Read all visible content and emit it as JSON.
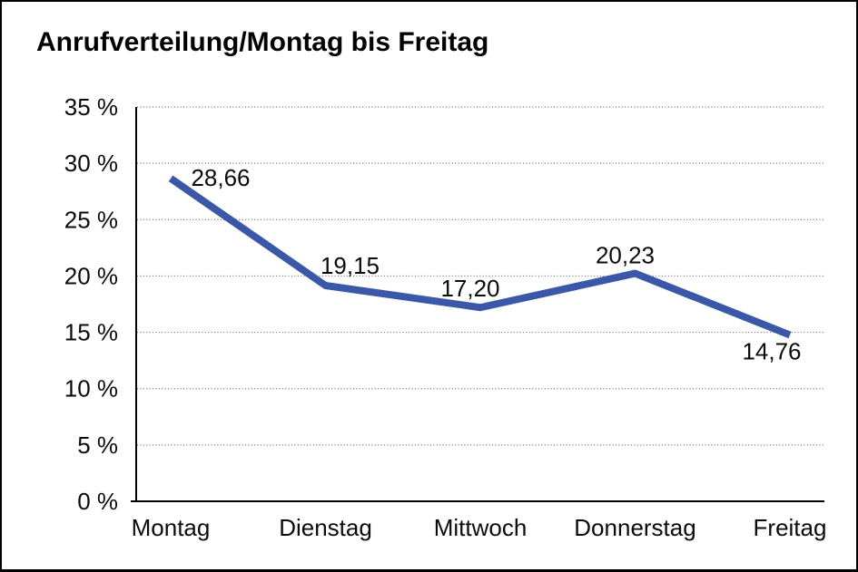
{
  "title": "Anrufverteilung/Montag bis Freitag",
  "colors": {
    "line": "#3A58A7",
    "axis": "#000000",
    "grid": "#6E6E6E",
    "text": "#0B0B0B",
    "background": "#FFFFFF",
    "frame_border": "#000000"
  },
  "chart_data": {
    "type": "line",
    "title": "Anrufverteilung/Montag bis Freitag",
    "categories": [
      "Montag",
      "Dienstag",
      "Mittwoch",
      "Donnerstag",
      "Freitag"
    ],
    "values": [
      28.66,
      19.15,
      17.2,
      20.23,
      14.76
    ],
    "value_labels": [
      "28,66",
      "19,15",
      "17,20",
      "20,23",
      "14,76"
    ],
    "unit": "%",
    "xlabel": "",
    "ylabel": "",
    "ylim": [
      0,
      35
    ],
    "ytick_step": 5,
    "ytick_labels": [
      "0 %",
      "5 %",
      "10 %",
      "15 %",
      "20 %",
      "25 %",
      "30 %",
      "35 %"
    ],
    "grid": "horizontal-dotted",
    "legend": "none",
    "series_color": "#3A58A7"
  }
}
